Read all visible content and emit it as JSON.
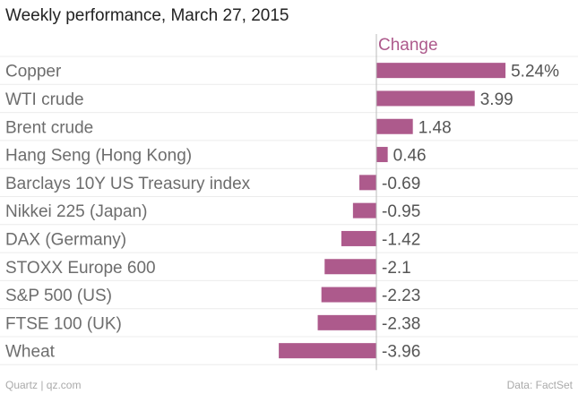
{
  "title": "Weekly performance, March 27, 2015",
  "footer": {
    "source_credit": "Quartz | qz.com",
    "data_credit": "Data: FactSet"
  },
  "colors": {
    "bar": "#ad5a8c",
    "header": "#ad5a8c",
    "label": "#6d6d6d",
    "value": "#555555",
    "axis": "#bbbbbb",
    "grid": "#ececec"
  },
  "chart_data": {
    "type": "bar",
    "orientation": "horizontal",
    "series": [
      {
        "name": "Change",
        "values": [
          5.24,
          3.99,
          1.48,
          0.46,
          -0.69,
          -0.95,
          -1.42,
          -2.1,
          -2.23,
          -2.38,
          -3.96
        ]
      }
    ],
    "categories": [
      "Copper",
      "WTI crude",
      "Brent crude",
      "Hang Seng (Hong Kong)",
      "Barclays 10Y US Treasury index",
      "Nikkei 225 (Japan)",
      "DAX (Germany)",
      "STOXX Europe 600",
      "S&P 500 (US)",
      "FTSE 100 (UK)",
      "Wheat"
    ],
    "value_labels": [
      "5.24%",
      "3.99",
      "1.48",
      "0.46",
      "-0.69",
      "-0.95",
      "-1.42",
      "-2.1",
      "-2.23",
      "-2.38",
      "-3.96"
    ],
    "column_header": "Change",
    "grid": true
  }
}
